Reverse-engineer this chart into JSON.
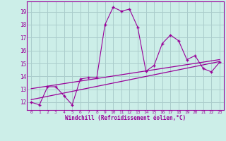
{
  "xlabel": "Windchill (Refroidissement éolien,°C)",
  "bg_color": "#cceee8",
  "line_color": "#990099",
  "grid_color": "#aacccc",
  "x_ticks": [
    0,
    1,
    2,
    3,
    4,
    5,
    6,
    7,
    8,
    9,
    10,
    11,
    12,
    13,
    14,
    15,
    16,
    17,
    18,
    19,
    20,
    21,
    22,
    23
  ],
  "y_ticks": [
    12,
    13,
    14,
    15,
    16,
    17,
    18,
    19
  ],
  "xlim": [
    -0.5,
    23.5
  ],
  "ylim": [
    11.4,
    19.8
  ],
  "series1_x": [
    0,
    1,
    2,
    3,
    4,
    5,
    6,
    7,
    8,
    9,
    10,
    11,
    12,
    13,
    14,
    15,
    16,
    17,
    18,
    19,
    20,
    21,
    22,
    23
  ],
  "series1_y": [
    12.0,
    11.8,
    13.2,
    13.2,
    12.5,
    11.8,
    13.8,
    13.9,
    13.9,
    18.0,
    19.35,
    19.05,
    19.2,
    17.8,
    14.4,
    14.85,
    16.55,
    17.2,
    16.75,
    15.3,
    15.6,
    14.6,
    14.35,
    15.1
  ],
  "series2_x": [
    0,
    23
  ],
  "series2_y": [
    13.05,
    15.3
  ],
  "series3_x": [
    0,
    23
  ],
  "series3_y": [
    12.2,
    15.15
  ]
}
